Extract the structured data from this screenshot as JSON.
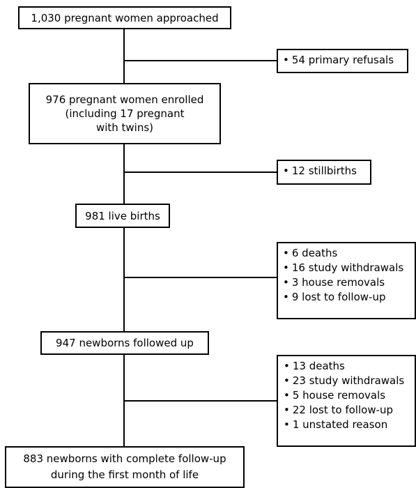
{
  "flow": {
    "approached": "1,030 pregnant women approached",
    "enrolled": "976 pregnant women enrolled\n(including 17 pregnant\nwith twins)",
    "live_births": "981 live births",
    "followed_up": "947 newborns followed up",
    "complete": "883 newborns  with complete follow-up\nduring the first month of life"
  },
  "exclusions": {
    "refusals": [
      "54 primary refusals"
    ],
    "stillbirths": [
      "12 stillbirths"
    ],
    "after_birth": [
      "6 deaths",
      "16 study withdrawals",
      "3 house removals",
      "9 lost to follow-up"
    ],
    "after_followup": [
      "13 deaths",
      "23 study withdrawals",
      "5 house removals",
      "22 lost to follow-up",
      "1 unstated reason"
    ]
  },
  "bullet_char": "•"
}
